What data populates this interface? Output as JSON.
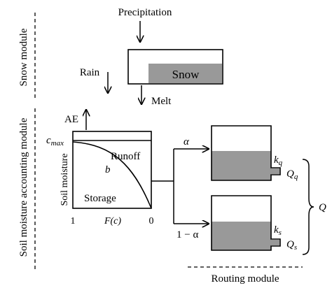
{
  "modules": {
    "snow": "Snow module",
    "soil": "Soil moisture accounting module",
    "routing": "Routing module"
  },
  "snow_module": {
    "precipitation": "Precipitation",
    "rain": "Rain",
    "snow": "Snow",
    "melt": "Melt"
  },
  "soil_module": {
    "ae": "AE",
    "cmax_base": "c",
    "cmax_sub": "max",
    "runoff": "Runoff",
    "b": "b",
    "storage": "Storage",
    "y_axis": "Soil moisture",
    "x_left": "1",
    "x_mid": "F(c)",
    "x_right": "0"
  },
  "routing": {
    "alpha": "α",
    "one_minus_alpha": "1 − α",
    "kq_base": "k",
    "kq_sub": "q",
    "qq_base": "Q",
    "qq_sub": "q",
    "ks_base": "k",
    "ks_sub": "s",
    "qs_base": "Q",
    "qs_sub": "s",
    "q_total": "Q"
  },
  "colors": {
    "fill": "#999999",
    "line": "#000000"
  }
}
